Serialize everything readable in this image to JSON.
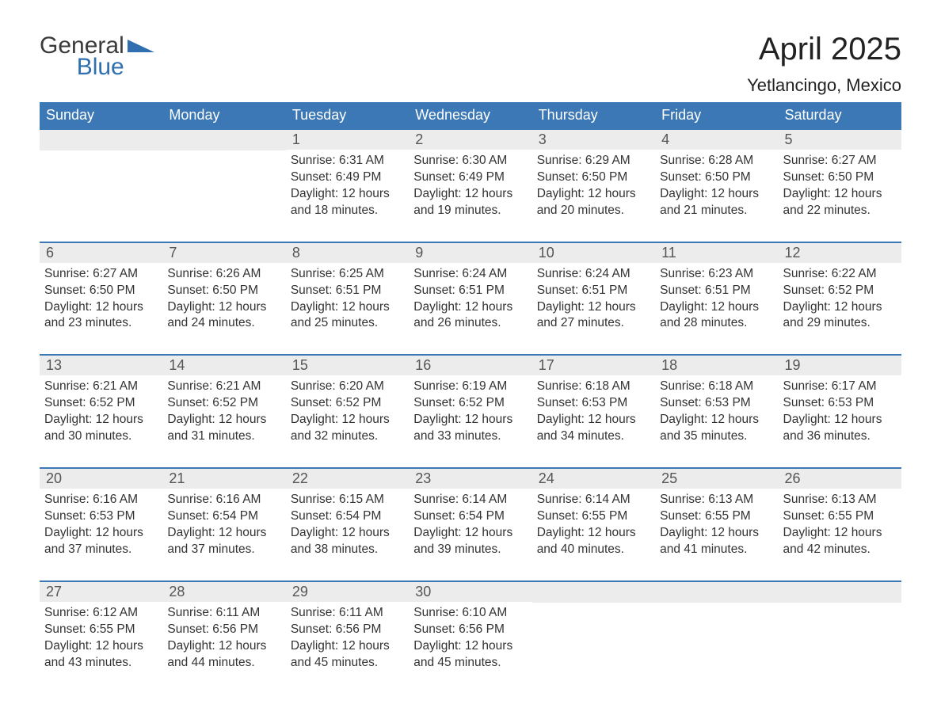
{
  "logo": {
    "text1": "General",
    "text2": "Blue",
    "shape_color": "#2f6fb0",
    "text1_color": "#3a3a3a",
    "text2_color": "#2f6fb0"
  },
  "title": "April 2025",
  "location": "Yetlancingo, Mexico",
  "colors": {
    "header_bg": "#3b78b5",
    "header_fg": "#ffffff",
    "row_border": "#3b78b5",
    "daystrip_bg": "#ececec",
    "body_text": "#333333",
    "page_bg": "#ffffff"
  },
  "fonts": {
    "title_pt": 40,
    "location_pt": 22,
    "dow_pt": 18,
    "daynum_pt": 18,
    "body_pt": 15.5
  },
  "day_headers": [
    "Sunday",
    "Monday",
    "Tuesday",
    "Wednesday",
    "Thursday",
    "Friday",
    "Saturday"
  ],
  "weeks": [
    [
      null,
      null,
      {
        "n": "1",
        "sr": "6:31 AM",
        "ss": "6:49 PM",
        "dl": "12 hours and 18 minutes."
      },
      {
        "n": "2",
        "sr": "6:30 AM",
        "ss": "6:49 PM",
        "dl": "12 hours and 19 minutes."
      },
      {
        "n": "3",
        "sr": "6:29 AM",
        "ss": "6:50 PM",
        "dl": "12 hours and 20 minutes."
      },
      {
        "n": "4",
        "sr": "6:28 AM",
        "ss": "6:50 PM",
        "dl": "12 hours and 21 minutes."
      },
      {
        "n": "5",
        "sr": "6:27 AM",
        "ss": "6:50 PM",
        "dl": "12 hours and 22 minutes."
      }
    ],
    [
      {
        "n": "6",
        "sr": "6:27 AM",
        "ss": "6:50 PM",
        "dl": "12 hours and 23 minutes."
      },
      {
        "n": "7",
        "sr": "6:26 AM",
        "ss": "6:50 PM",
        "dl": "12 hours and 24 minutes."
      },
      {
        "n": "8",
        "sr": "6:25 AM",
        "ss": "6:51 PM",
        "dl": "12 hours and 25 minutes."
      },
      {
        "n": "9",
        "sr": "6:24 AM",
        "ss": "6:51 PM",
        "dl": "12 hours and 26 minutes."
      },
      {
        "n": "10",
        "sr": "6:24 AM",
        "ss": "6:51 PM",
        "dl": "12 hours and 27 minutes."
      },
      {
        "n": "11",
        "sr": "6:23 AM",
        "ss": "6:51 PM",
        "dl": "12 hours and 28 minutes."
      },
      {
        "n": "12",
        "sr": "6:22 AM",
        "ss": "6:52 PM",
        "dl": "12 hours and 29 minutes."
      }
    ],
    [
      {
        "n": "13",
        "sr": "6:21 AM",
        "ss": "6:52 PM",
        "dl": "12 hours and 30 minutes."
      },
      {
        "n": "14",
        "sr": "6:21 AM",
        "ss": "6:52 PM",
        "dl": "12 hours and 31 minutes."
      },
      {
        "n": "15",
        "sr": "6:20 AM",
        "ss": "6:52 PM",
        "dl": "12 hours and 32 minutes."
      },
      {
        "n": "16",
        "sr": "6:19 AM",
        "ss": "6:52 PM",
        "dl": "12 hours and 33 minutes."
      },
      {
        "n": "17",
        "sr": "6:18 AM",
        "ss": "6:53 PM",
        "dl": "12 hours and 34 minutes."
      },
      {
        "n": "18",
        "sr": "6:18 AM",
        "ss": "6:53 PM",
        "dl": "12 hours and 35 minutes."
      },
      {
        "n": "19",
        "sr": "6:17 AM",
        "ss": "6:53 PM",
        "dl": "12 hours and 36 minutes."
      }
    ],
    [
      {
        "n": "20",
        "sr": "6:16 AM",
        "ss": "6:53 PM",
        "dl": "12 hours and 37 minutes."
      },
      {
        "n": "21",
        "sr": "6:16 AM",
        "ss": "6:54 PM",
        "dl": "12 hours and 37 minutes."
      },
      {
        "n": "22",
        "sr": "6:15 AM",
        "ss": "6:54 PM",
        "dl": "12 hours and 38 minutes."
      },
      {
        "n": "23",
        "sr": "6:14 AM",
        "ss": "6:54 PM",
        "dl": "12 hours and 39 minutes."
      },
      {
        "n": "24",
        "sr": "6:14 AM",
        "ss": "6:55 PM",
        "dl": "12 hours and 40 minutes."
      },
      {
        "n": "25",
        "sr": "6:13 AM",
        "ss": "6:55 PM",
        "dl": "12 hours and 41 minutes."
      },
      {
        "n": "26",
        "sr": "6:13 AM",
        "ss": "6:55 PM",
        "dl": "12 hours and 42 minutes."
      }
    ],
    [
      {
        "n": "27",
        "sr": "6:12 AM",
        "ss": "6:55 PM",
        "dl": "12 hours and 43 minutes."
      },
      {
        "n": "28",
        "sr": "6:11 AM",
        "ss": "6:56 PM",
        "dl": "12 hours and 44 minutes."
      },
      {
        "n": "29",
        "sr": "6:11 AM",
        "ss": "6:56 PM",
        "dl": "12 hours and 45 minutes."
      },
      {
        "n": "30",
        "sr": "6:10 AM",
        "ss": "6:56 PM",
        "dl": "12 hours and 45 minutes."
      },
      null,
      null,
      null
    ]
  ],
  "labels": {
    "sunrise": "Sunrise:",
    "sunset": "Sunset:",
    "daylight": "Daylight:"
  }
}
